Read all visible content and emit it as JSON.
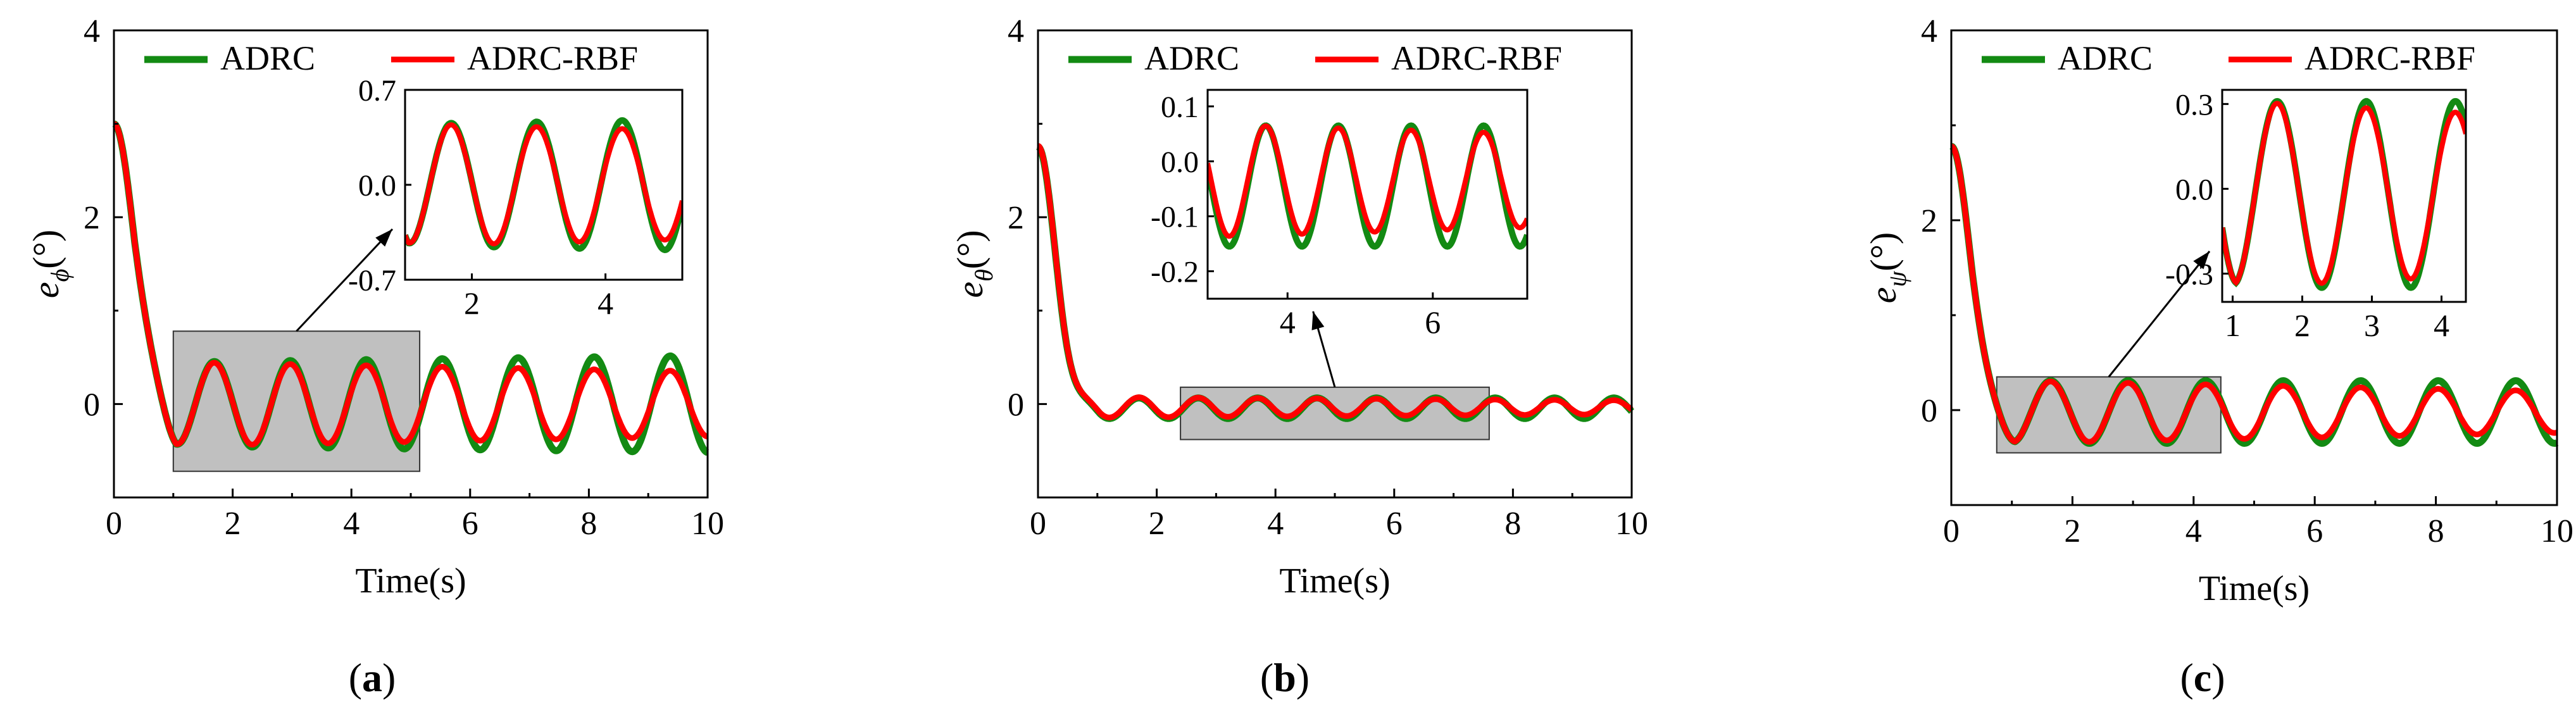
{
  "colors": {
    "adrc": "#138A13",
    "adrc_rbf": "#FF0000",
    "zoom_box": "#C0C0C0",
    "axis": "#000000"
  },
  "chart_data": [
    {
      "type": "line",
      "panel_label": "a",
      "xlabel": "Time(s)",
      "ylabel_base": "e",
      "ylabel_sub": "ϕ",
      "ylabel_unit": "(°)",
      "xlim": [
        0,
        10
      ],
      "ylim": [
        -1,
        4
      ],
      "xticks": [
        0,
        2,
        4,
        6,
        8,
        10
      ],
      "yticks": [
        0,
        2,
        4
      ],
      "legend": [
        "ADRC",
        "ADRC-RBF"
      ],
      "series": [
        {
          "name": "ADRC",
          "amp_start": 0.45,
          "amp_end": 0.52,
          "period": 1.28,
          "phase_start": 1.05,
          "decay_tau": 0.35,
          "x0": 3.0
        },
        {
          "name": "ADRC-RBF",
          "amp_start": 0.45,
          "amp_end": 0.35,
          "period": 1.28,
          "phase_start": 1.05,
          "decay_tau": 0.35,
          "x0": 3.0
        }
      ],
      "zoom_region": {
        "x": [
          1.0,
          5.15
        ],
        "y": [
          -0.72,
          0.78
        ]
      },
      "inset": {
        "xlim": [
          1.0,
          5.15
        ],
        "ylim": [
          -0.7,
          0.7
        ],
        "xticks": [
          2,
          4
        ],
        "yticks": [
          0.7,
          0.0,
          -0.7
        ],
        "ytick_labels": [
          "0.7",
          "0.0",
          "-0.7"
        ]
      }
    },
    {
      "type": "line",
      "panel_label": "b",
      "xlabel": "Time(s)",
      "ylabel_base": "e",
      "ylabel_sub": "θ",
      "ylabel_unit": "(°)",
      "xlim": [
        0,
        10
      ],
      "ylim": [
        -1,
        4
      ],
      "xticks": [
        0,
        2,
        4,
        6,
        8,
        10
      ],
      "yticks": [
        0,
        2,
        4
      ],
      "legend": [
        "ADRC",
        "ADRC-RBF"
      ],
      "series": [
        {
          "name": "ADRC",
          "amp_start": 0.11,
          "amp_end": 0.11,
          "period": 1.0,
          "phase_start": 1.2,
          "decay_tau": 0.3,
          "x0": 2.8,
          "offset": -0.045
        },
        {
          "name": "ADRC-RBF",
          "amp_start": 0.11,
          "amp_end": 0.075,
          "period": 1.0,
          "phase_start": 1.2,
          "decay_tau": 0.3,
          "x0": 2.8,
          "offset": -0.035
        }
      ],
      "zoom_region": {
        "x": [
          2.4,
          7.6
        ],
        "y": [
          -0.38,
          0.18
        ]
      },
      "inset": {
        "xlim": [
          2.9,
          7.3
        ],
        "ylim": [
          -0.25,
          0.13
        ],
        "xticks": [
          4,
          6
        ],
        "yticks": [
          0.1,
          0.0,
          -0.1,
          -0.2
        ],
        "ytick_labels": [
          "0.1",
          "0.0",
          "-0.1",
          "-0.2"
        ]
      }
    },
    {
      "type": "line",
      "panel_label": "c",
      "xlabel": "Time(s)",
      "ylabel_base": "e",
      "ylabel_sub": "ψ",
      "ylabel_unit": "(°)",
      "xlim": [
        0,
        10
      ],
      "ylim": [
        -1,
        4
      ],
      "xticks": [
        0,
        2,
        4,
        6,
        8,
        10
      ],
      "yticks": [
        0,
        2,
        4
      ],
      "legend": [
        "ADRC",
        "ADRC-RBF"
      ],
      "series": [
        {
          "name": "ADRC",
          "amp_start": 0.33,
          "amp_end": 0.33,
          "period": 1.28,
          "phase_start": 1.0,
          "decay_tau": 0.32,
          "x0": 2.8,
          "offset": -0.02
        },
        {
          "name": "ADRC-RBF",
          "amp_start": 0.33,
          "amp_end": 0.22,
          "period": 1.28,
          "phase_start": 1.0,
          "decay_tau": 0.32,
          "x0": 2.8,
          "offset": -0.02
        }
      ],
      "zoom_region": {
        "x": [
          0.75,
          4.45
        ],
        "y": [
          -0.45,
          0.35
        ]
      },
      "inset": {
        "xlim": [
          0.85,
          4.35
        ],
        "ylim": [
          -0.4,
          0.35
        ],
        "xticks": [
          1,
          2,
          3,
          4
        ],
        "yticks": [
          0.3,
          0.0,
          -0.3
        ],
        "ytick_labels": [
          "0.3",
          "0.0",
          "-0.3"
        ]
      }
    }
  ]
}
